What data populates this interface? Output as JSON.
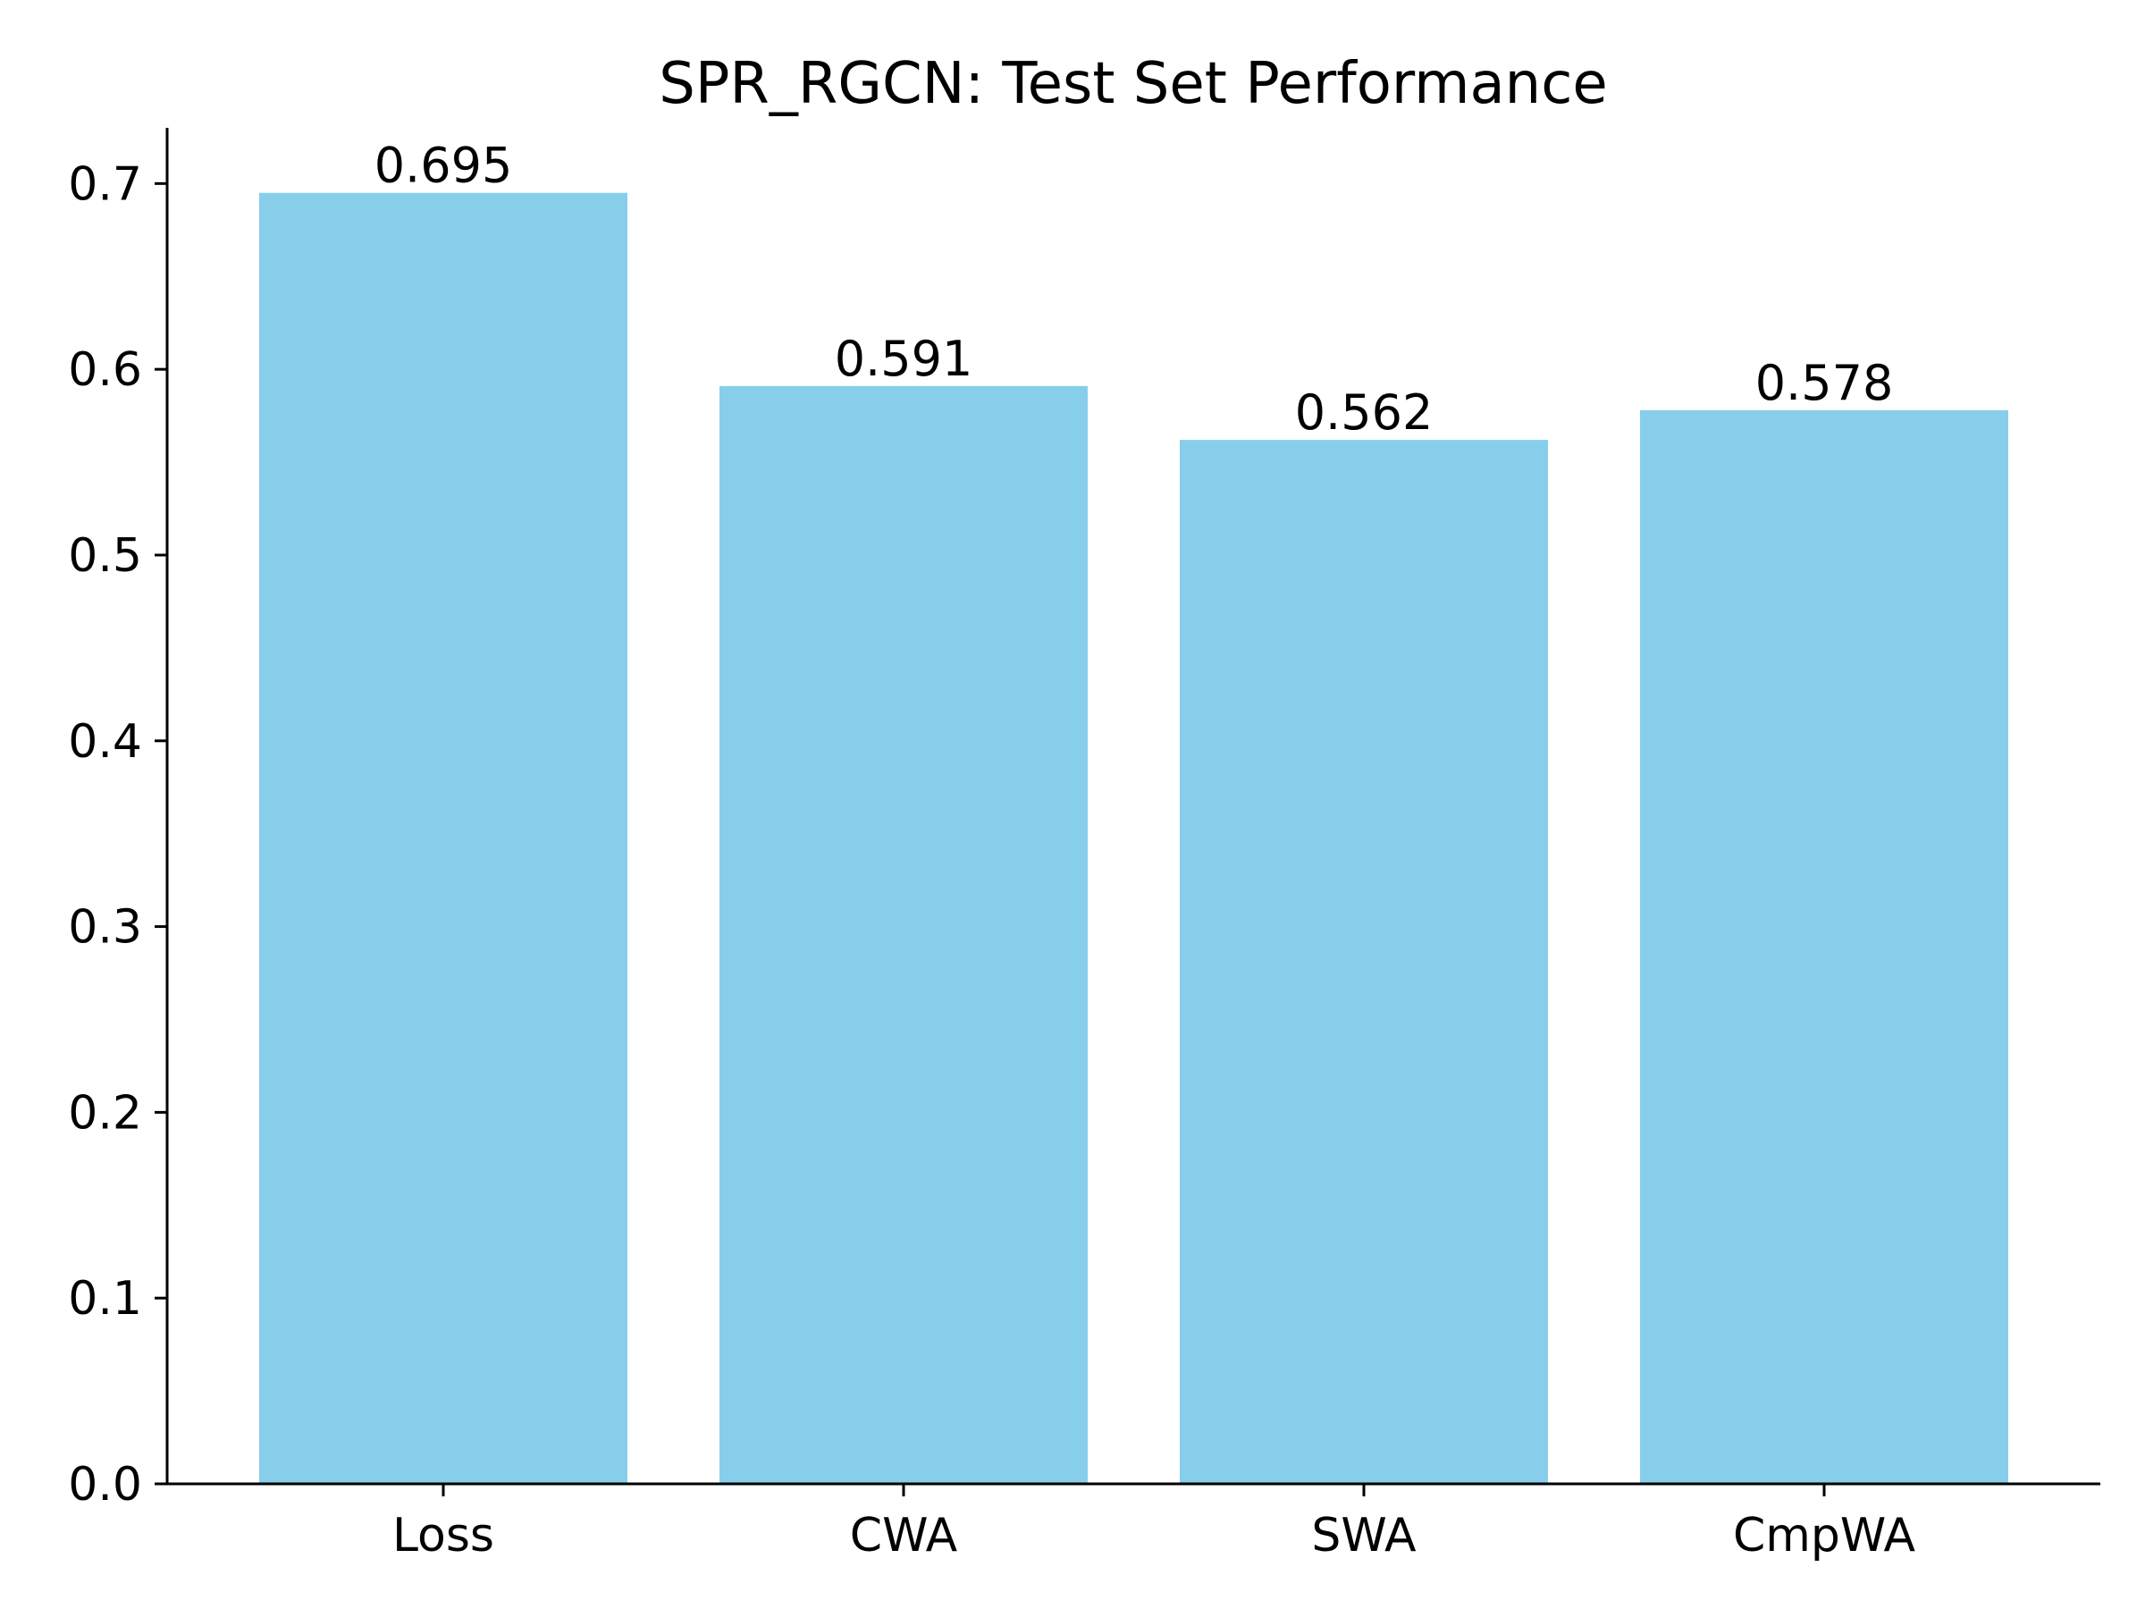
{
  "chart_data": {
    "type": "bar",
    "title": "SPR_RGCN: Test Set Performance",
    "xlabel": "",
    "ylabel": "",
    "categories": [
      "Loss",
      "CWA",
      "SWA",
      "CmpWA"
    ],
    "values": [
      0.695,
      0.591,
      0.562,
      0.578
    ],
    "value_labels": [
      "0.695",
      "0.591",
      "0.562",
      "0.578"
    ],
    "ylim": [
      0,
      0.73
    ],
    "yticks": [
      0.0,
      0.1,
      0.2,
      0.3,
      0.4,
      0.5,
      0.6,
      0.7
    ],
    "ytick_labels": [
      "0.0",
      "0.1",
      "0.2",
      "0.3",
      "0.4",
      "0.5",
      "0.6",
      "0.7"
    ],
    "bar_color": "#87CEEB",
    "grid": false,
    "legend": "none"
  }
}
